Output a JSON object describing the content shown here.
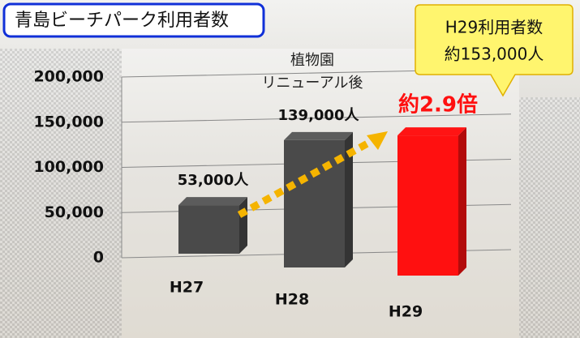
{
  "chart_data": {
    "type": "bar3d",
    "title": "青島ビーチパーク利用者数",
    "categories": [
      "H27",
      "H28",
      "H29"
    ],
    "values": [
      53000,
      139000,
      153000
    ],
    "value_labels": [
      "53,000人",
      "139,000人",
      null
    ],
    "colors": [
      "#4a4a4a",
      "#4a4a4a",
      "#ff1010"
    ],
    "ylim": [
      0,
      200000
    ],
    "yticks": [
      0,
      {
        "value": 50000,
        "label": "50,000"
      },
      {
        "value": 100000,
        "label": "100,000"
      },
      {
        "value": 150000,
        "label": "150,000"
      },
      {
        "value": 200000,
        "label": "200,000"
      }
    ],
    "grid": true,
    "annotations": [
      "植物園",
      "リニューアル後",
      "約2.9倍",
      "H29利用者数",
      "約153,000人"
    ]
  }
}
